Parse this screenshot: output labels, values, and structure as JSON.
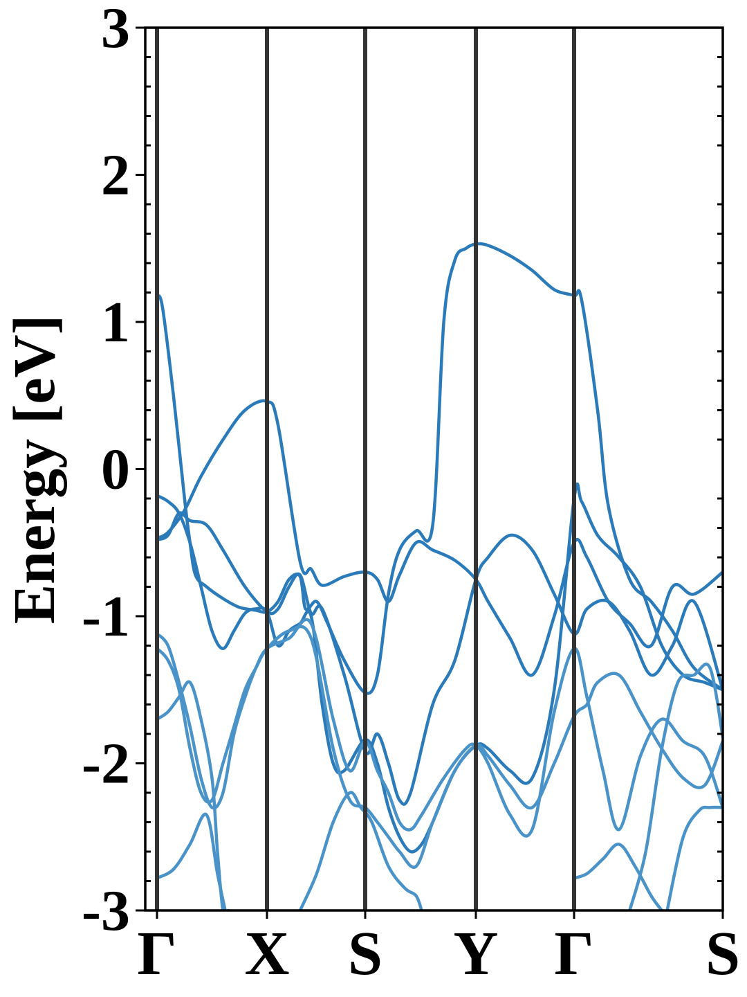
{
  "chart_data": {
    "type": "line",
    "title": "",
    "xlabel": "",
    "ylabel": "Energy [eV]",
    "ylim": [
      -3,
      3
    ],
    "yticks": [
      -3,
      -2,
      -1,
      0,
      1,
      2,
      3
    ],
    "ytick_labels": [
      "-3",
      "-2",
      "-1",
      "0",
      "1",
      "2",
      "3"
    ],
    "xlim": [
      0,
      5.17
    ],
    "kpoints": [
      {
        "label": "Γ",
        "x": 0
      },
      {
        "label": "X",
        "x": 1.0
      },
      {
        "label": "S",
        "x": 1.89
      },
      {
        "label": "Y",
        "x": 2.89
      },
      {
        "label": "Γ",
        "x": 3.78
      },
      {
        "label": "S",
        "x": 5.17
      }
    ],
    "grid": false,
    "legend": "none",
    "colors": {
      "band": "#2b7bba",
      "band_light": "#4a93c9",
      "kline": "#333333",
      "axis": "#000000"
    },
    "series": [
      {
        "x": [
          0,
          0.05,
          0.15,
          0.25,
          0.3,
          0.35,
          0.45,
          0.6,
          0.75,
          0.9,
          1.0,
          1.1,
          1.2,
          1.3,
          1.35,
          1.45,
          1.55,
          1.7,
          1.89,
          2.0,
          2.1,
          2.2,
          2.35,
          2.5,
          2.6,
          2.7,
          2.8,
          2.89,
          3.0,
          3.2,
          3.4,
          3.6,
          3.78,
          3.85,
          4.0,
          4.1,
          4.3,
          4.5,
          4.7,
          4.9,
          5.17
        ],
        "y": [
          1.18,
          1.1,
          0.5,
          -0.2,
          -0.5,
          -0.72,
          -0.8,
          -0.88,
          -0.94,
          -0.96,
          -0.97,
          -0.9,
          -0.75,
          -0.73,
          -0.95,
          -0.9,
          -1.05,
          -1.3,
          -1.52,
          -1.4,
          -0.85,
          -0.55,
          -0.42,
          -0.38,
          1.0,
          1.42,
          1.5,
          1.53,
          1.52,
          1.45,
          1.35,
          1.22,
          1.18,
          1.15,
          0.4,
          -0.25,
          -0.75,
          -0.9,
          -1.1,
          -1.35,
          -1.5
        ]
      },
      {
        "x": [
          0,
          0.1,
          0.25,
          0.4,
          0.6,
          0.8,
          1.0,
          1.1,
          1.3,
          1.4,
          1.5,
          1.7,
          1.89,
          2.0,
          2.1,
          2.2,
          2.35,
          2.5,
          2.7,
          2.89,
          3.0,
          3.2,
          3.4,
          3.6,
          3.78,
          3.9,
          4.1,
          4.3,
          4.5,
          4.7,
          4.9,
          5.17
        ],
        "y": [
          -0.47,
          -0.43,
          -0.28,
          -0.05,
          0.2,
          0.4,
          0.46,
          0.3,
          -0.63,
          -0.68,
          -0.79,
          -0.73,
          -0.7,
          -0.75,
          -0.9,
          -0.72,
          -0.5,
          -0.55,
          -0.62,
          -0.75,
          -0.9,
          -1.15,
          -1.4,
          -1.0,
          -0.5,
          -0.6,
          -0.9,
          -1.05,
          -1.2,
          -0.8,
          -0.85,
          -0.7
        ]
      },
      {
        "x": [
          0,
          0.1,
          0.2,
          0.3,
          0.45,
          0.6,
          0.8,
          1.0,
          1.1,
          1.2,
          1.3,
          1.4,
          1.5,
          1.7,
          1.89,
          2.0,
          2.1,
          2.2,
          2.3,
          2.5,
          2.7,
          2.89,
          3.0,
          3.2,
          3.4,
          3.6,
          3.78,
          3.9,
          4.1,
          4.3,
          4.5,
          4.7,
          4.9,
          5.17
        ],
        "y": [
          -0.48,
          -0.45,
          -0.3,
          -0.35,
          -0.38,
          -0.55,
          -0.8,
          -0.97,
          -0.95,
          -0.8,
          -0.72,
          -0.98,
          -0.95,
          -1.4,
          -1.92,
          -1.8,
          -2.0,
          -2.25,
          -2.2,
          -1.6,
          -1.3,
          -0.75,
          -0.6,
          -0.45,
          -0.55,
          -0.85,
          -1.12,
          -0.95,
          -0.9,
          -1.1,
          -1.4,
          -1.2,
          -0.9,
          -1.5
        ]
      },
      {
        "x": [
          0,
          0.1,
          0.2,
          0.3,
          0.4,
          0.5,
          0.6,
          0.7,
          0.8,
          0.9,
          1.0,
          1.1,
          1.2,
          1.3,
          1.4,
          1.5,
          1.6,
          1.7,
          1.89,
          2.0,
          2.1,
          2.2,
          2.3,
          2.4,
          2.5,
          2.7,
          2.89,
          3.0,
          3.2,
          3.4,
          3.6,
          3.78,
          3.85,
          4.0,
          4.2,
          4.4,
          4.6,
          4.8,
          5.0,
          5.17
        ],
        "y": [
          -0.18,
          -0.22,
          -0.3,
          -0.5,
          -0.8,
          -1.1,
          -1.22,
          -1.1,
          -0.98,
          -0.95,
          -0.97,
          -1.2,
          -1.1,
          -1.05,
          -1.0,
          -1.6,
          -2.0,
          -2.05,
          -1.84,
          -2.0,
          -2.3,
          -2.5,
          -2.6,
          -2.55,
          -2.4,
          -2.05,
          -1.88,
          -1.9,
          -2.05,
          -2.1,
          -1.5,
          -0.2,
          -0.22,
          -0.45,
          -0.6,
          -0.8,
          -1.2,
          -1.4,
          -1.45,
          -1.5
        ]
      },
      {
        "x": [
          0,
          0.1,
          0.2,
          0.3,
          0.4,
          0.5,
          0.6,
          0.7,
          0.8,
          0.9,
          1.0,
          1.2,
          1.4,
          1.6,
          1.75,
          1.89,
          2.0,
          2.1,
          2.2,
          2.3,
          2.4,
          2.6,
          2.8,
          2.89,
          3.0,
          3.2,
          3.4,
          3.6,
          3.78,
          3.9,
          4.05,
          4.2,
          4.4,
          4.6,
          4.8,
          5.0,
          5.17
        ],
        "y": [
          -1.12,
          -1.2,
          -1.45,
          -1.75,
          -2.1,
          -2.3,
          -2.2,
          -1.8,
          -1.55,
          -1.35,
          -1.22,
          -1.15,
          -1.05,
          -1.7,
          -2.05,
          -1.85,
          -2.05,
          -2.2,
          -2.4,
          -2.45,
          -2.35,
          -2.1,
          -1.9,
          -1.88,
          -2.0,
          -2.35,
          -2.45,
          -1.65,
          -1.22,
          -1.55,
          -2.05,
          -2.45,
          -1.95,
          -1.7,
          -1.85,
          -1.95,
          -2.3
        ]
      },
      {
        "x": [
          0,
          0.1,
          0.2,
          0.3,
          0.4,
          0.5,
          0.6,
          0.7,
          0.8,
          0.9,
          1.0,
          1.2,
          1.4,
          1.6,
          1.75,
          1.89,
          2.0,
          2.1,
          2.2,
          2.35,
          2.5,
          2.7,
          2.89,
          3.0,
          3.2,
          3.4,
          3.6,
          3.78,
          3.9,
          4.0,
          4.2,
          4.4,
          4.6,
          4.8,
          5.0,
          5.17
        ],
        "y": [
          -1.22,
          -1.3,
          -1.5,
          -1.9,
          -2.2,
          -2.25,
          -2.0,
          -1.75,
          -1.5,
          -1.35,
          -1.22,
          -1.1,
          -1.15,
          -1.9,
          -2.25,
          -2.3,
          -2.4,
          -2.5,
          -2.6,
          -2.7,
          -2.4,
          -2.05,
          -1.88,
          -1.95,
          -2.15,
          -2.3,
          -2.0,
          -1.68,
          -1.6,
          -1.45,
          -1.4,
          -1.65,
          -1.9,
          -2.1,
          -2.15,
          -1.85
        ]
      },
      {
        "x": [
          0,
          0.1,
          0.2,
          0.3,
          0.4,
          0.5,
          0.55,
          0.6,
          0.65
        ],
        "y": [
          -1.7,
          -1.65,
          -1.55,
          -1.45,
          -1.7,
          -2.1,
          -2.6,
          -3.0,
          -3.0
        ]
      },
      {
        "x": [
          0,
          0.15,
          0.3,
          0.45,
          0.55,
          0.62
        ],
        "y": [
          -2.78,
          -2.72,
          -2.55,
          -2.35,
          -2.75,
          -3.0
        ]
      },
      {
        "x": [
          1.3,
          1.45,
          1.6,
          1.75,
          1.85,
          1.95,
          2.1,
          2.25,
          2.35,
          2.4
        ],
        "y": [
          -3.0,
          -2.75,
          -2.4,
          -2.2,
          -2.3,
          -2.4,
          -2.7,
          -2.85,
          -2.9,
          -3.0
        ]
      },
      {
        "x": [
          3.78,
          3.9,
          4.05,
          4.2,
          4.35,
          4.5,
          4.6
        ],
        "y": [
          -2.78,
          -2.75,
          -2.65,
          -2.55,
          -2.7,
          -2.9,
          -3.0
        ]
      },
      {
        "x": [
          4.3,
          4.45,
          4.6,
          4.75,
          4.9,
          5.05,
          5.17
        ],
        "y": [
          -3.0,
          -2.6,
          -1.9,
          -1.45,
          -1.4,
          -1.35,
          -1.82
        ]
      },
      {
        "x": [
          4.65,
          4.8,
          4.95,
          5.05,
          5.17
        ],
        "y": [
          -3.0,
          -2.5,
          -2.32,
          -2.3,
          -2.3
        ]
      }
    ]
  }
}
